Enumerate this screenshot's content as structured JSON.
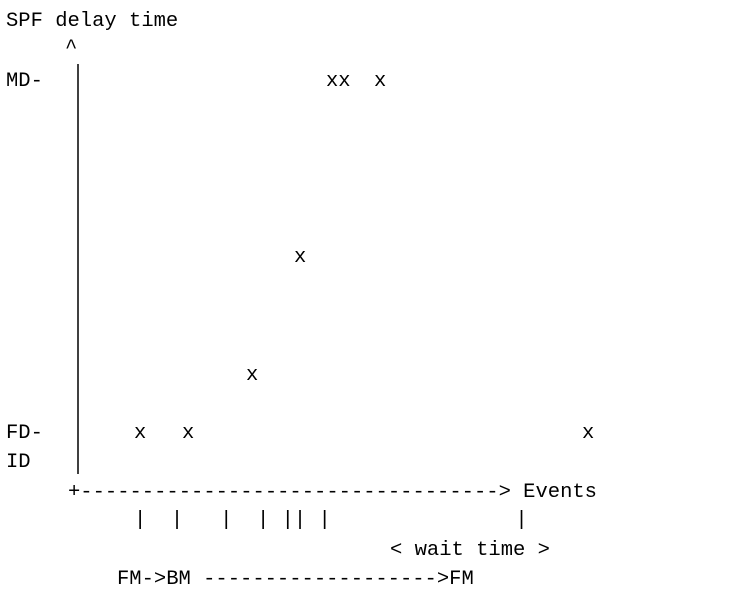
{
  "title": "SPF delay time",
  "y_axis": {
    "arrow": "^",
    "label_max": "MD-",
    "label_first": "FD-",
    "label_initial": "ID"
  },
  "x_axis": {
    "line": "+----------------------------------> Events",
    "event_ticks": "|  |   |  | || |               |",
    "wait_time": "< wait time >",
    "transition": "FM->BM ------------------->FM"
  },
  "chart_data": {
    "type": "scatter",
    "title": "SPF delay time",
    "ylabel": "SPF delay time",
    "xlabel": "Events",
    "y_levels": [
      "ID",
      "FD",
      "MD"
    ],
    "points": [
      {
        "event": 1,
        "mark": "x",
        "level": "FD"
      },
      {
        "event": 2,
        "mark": "x",
        "level": "FD"
      },
      {
        "event": 3,
        "mark": "x",
        "level": "between FD and MD"
      },
      {
        "event": 4,
        "mark": "x",
        "level": "between FD and MD"
      },
      {
        "event": 5,
        "mark": "x",
        "level": "MD"
      },
      {
        "event": 6,
        "mark": "x",
        "level": "MD"
      },
      {
        "event": 7,
        "mark": "x",
        "level": "MD"
      },
      {
        "event": 8,
        "mark": "x",
        "level": "FD"
      }
    ],
    "annotations": [
      "< wait time >",
      "FM->BM ------------------->FM"
    ]
  }
}
